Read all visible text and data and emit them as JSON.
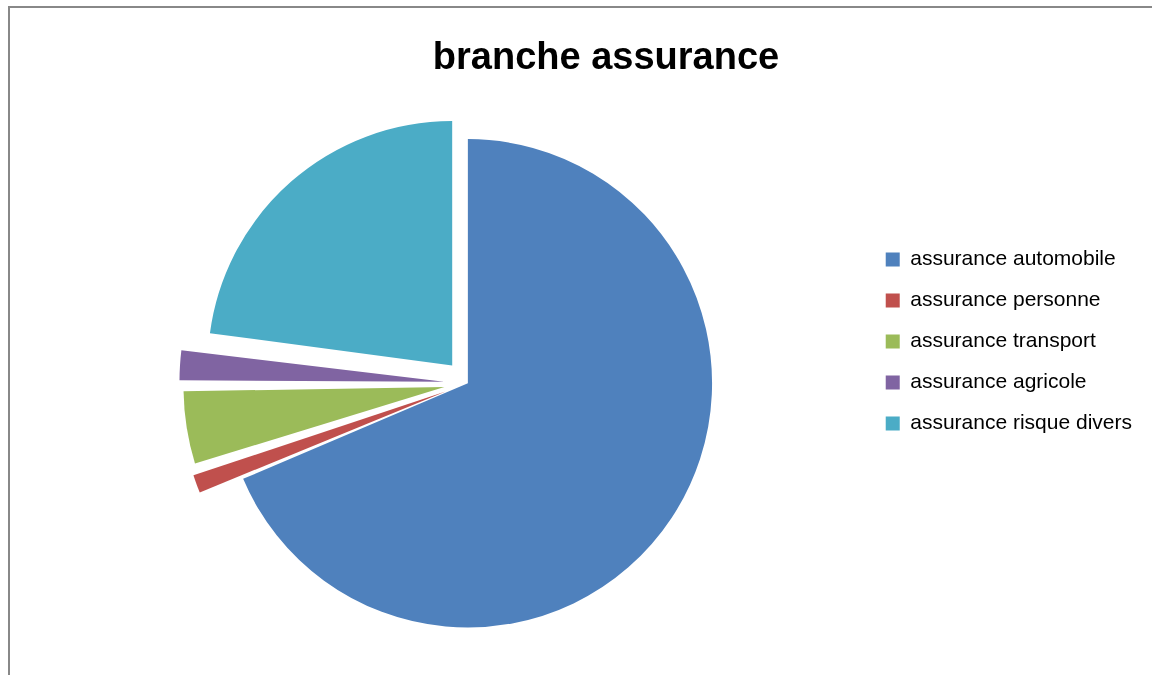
{
  "chart_data": {
    "type": "pie",
    "title": "branche assurance",
    "categories": [
      "assurance automobile",
      "assurance personne",
      "assurance transport",
      "assurance agricole",
      "assurance risque divers"
    ],
    "values": [
      68.6,
      1.5,
      4.8,
      2.2,
      22.9
    ],
    "colors": [
      "#4f81bd",
      "#c0504d",
      "#9bbb59",
      "#8064a2",
      "#4bacc6"
    ],
    "legend": "right"
  }
}
